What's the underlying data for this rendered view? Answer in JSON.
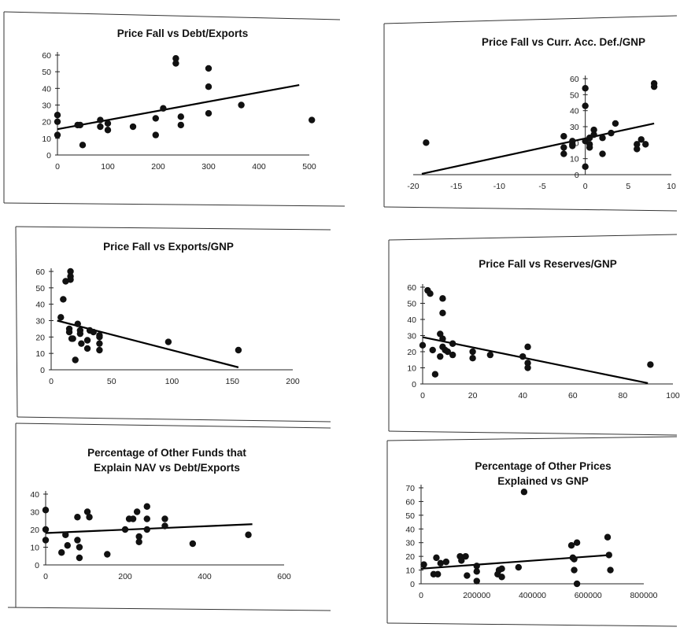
{
  "chart_data": [
    {
      "type": "scatter",
      "title": "Price Fall vs Debt/Exports",
      "xlim": [
        0,
        500
      ],
      "ylim": [
        0,
        60
      ],
      "xticks": [
        0,
        100,
        200,
        300,
        400,
        500
      ],
      "xtick_labels": [
        "0",
        "100",
        "200",
        "300",
        "400",
        "500"
      ],
      "yticks": [
        0,
        10,
        20,
        30,
        40,
        50,
        60
      ],
      "ytick_labels": [
        "0",
        "10",
        "20",
        "30",
        "40",
        "50",
        "60"
      ],
      "trendline": [
        [
          0,
          15.5
        ],
        [
          480,
          42
        ]
      ],
      "points": [
        [
          0,
          24
        ],
        [
          0,
          20
        ],
        [
          0,
          12
        ],
        [
          40,
          18
        ],
        [
          45,
          18
        ],
        [
          50,
          6
        ],
        [
          85,
          21
        ],
        [
          85,
          17
        ],
        [
          100,
          19
        ],
        [
          100,
          15
        ],
        [
          150,
          17
        ],
        [
          195,
          22
        ],
        [
          195,
          12
        ],
        [
          210,
          28
        ],
        [
          235,
          58
        ],
        [
          235,
          55
        ],
        [
          245,
          23
        ],
        [
          245,
          18
        ],
        [
          300,
          52
        ],
        [
          300,
          41
        ],
        [
          300,
          25
        ],
        [
          365,
          30
        ],
        [
          505,
          21
        ]
      ]
    },
    {
      "type": "scatter",
      "title": "Price Fall vs Curr. Acc. Def./GNP",
      "xlim": [
        -20,
        10
      ],
      "ylim": [
        0,
        60
      ],
      "xticks": [
        -20,
        -15,
        -10,
        -5,
        0,
        5,
        10
      ],
      "xtick_labels": [
        "-20",
        "-15",
        "-10",
        "-5",
        "0",
        "5",
        "10"
      ],
      "yticks": [
        0,
        10,
        20,
        30,
        40,
        50,
        60
      ],
      "ytick_labels": [
        "0",
        "10",
        "20",
        "30",
        "40",
        "50",
        "60"
      ],
      "trendline": [
        [
          -19,
          0.5
        ],
        [
          8,
          32
        ]
      ],
      "points": [
        [
          -18.5,
          20
        ],
        [
          -2.5,
          24
        ],
        [
          -2.5,
          17
        ],
        [
          -2.5,
          13
        ],
        [
          -1.5,
          21
        ],
        [
          -1.5,
          19
        ],
        [
          -1.5,
          18
        ],
        [
          0,
          54
        ],
        [
          0,
          43
        ],
        [
          0,
          21
        ],
        [
          0,
          5
        ],
        [
          0.5,
          23
        ],
        [
          0.5,
          19
        ],
        [
          0.5,
          17
        ],
        [
          1,
          28
        ],
        [
          1,
          25
        ],
        [
          2,
          23
        ],
        [
          2,
          13
        ],
        [
          3,
          26
        ],
        [
          3.5,
          32
        ],
        [
          6,
          19
        ],
        [
          6,
          16
        ],
        [
          6.5,
          22
        ],
        [
          7,
          19
        ],
        [
          8,
          57
        ],
        [
          8,
          55
        ]
      ]
    },
    {
      "type": "scatter",
      "title": "Price Fall vs Exports/GNP",
      "xlim": [
        0,
        200
      ],
      "ylim": [
        0,
        60
      ],
      "xticks": [
        0,
        50,
        100,
        150,
        200
      ],
      "xtick_labels": [
        "0",
        "50",
        "100",
        "150",
        "200"
      ],
      "yticks": [
        0,
        10,
        20,
        30,
        40,
        50,
        60
      ],
      "ytick_labels": [
        "0",
        "10",
        "20",
        "30",
        "40",
        "50",
        "60"
      ],
      "trendline": [
        [
          5,
          30
        ],
        [
          155,
          1.5
        ]
      ],
      "points": [
        [
          8,
          32
        ],
        [
          10,
          43
        ],
        [
          12,
          54
        ],
        [
          16,
          60
        ],
        [
          16,
          57
        ],
        [
          16,
          55
        ],
        [
          15,
          25
        ],
        [
          15,
          23
        ],
        [
          17,
          19
        ],
        [
          18,
          19
        ],
        [
          20,
          6
        ],
        [
          22,
          28
        ],
        [
          24,
          24
        ],
        [
          24,
          22
        ],
        [
          25,
          16
        ],
        [
          30,
          13
        ],
        [
          30,
          18
        ],
        [
          32,
          24
        ],
        [
          35,
          23
        ],
        [
          40,
          21
        ],
        [
          40,
          20
        ],
        [
          40,
          16
        ],
        [
          40,
          12
        ],
        [
          97,
          17
        ],
        [
          155,
          12
        ]
      ]
    },
    {
      "type": "scatter",
      "title": "Price Fall vs Reserves/GNP",
      "xlim": [
        0,
        100
      ],
      "ylim": [
        0,
        60
      ],
      "xticks": [
        0,
        20,
        40,
        60,
        80,
        100
      ],
      "xtick_labels": [
        "0",
        "20",
        "40",
        "60",
        "80",
        "100"
      ],
      "yticks": [
        0,
        10,
        20,
        30,
        40,
        50,
        60
      ],
      "ytick_labels": [
        "0",
        "10",
        "20",
        "30",
        "40",
        "50",
        "60"
      ],
      "trendline": [
        [
          0,
          29
        ],
        [
          90,
          0.5
        ]
      ],
      "points": [
        [
          0,
          24
        ],
        [
          2,
          58
        ],
        [
          3,
          56
        ],
        [
          4,
          21
        ],
        [
          5,
          6
        ],
        [
          7,
          31
        ],
        [
          7,
          17
        ],
        [
          8,
          53
        ],
        [
          8,
          44
        ],
        [
          8,
          28
        ],
        [
          8,
          23
        ],
        [
          9,
          21
        ],
        [
          10,
          20
        ],
        [
          12,
          25
        ],
        [
          12,
          18
        ],
        [
          20,
          20
        ],
        [
          20,
          16
        ],
        [
          27,
          18
        ],
        [
          40,
          17
        ],
        [
          42,
          13
        ],
        [
          42,
          23
        ],
        [
          42,
          10
        ],
        [
          91,
          12
        ]
      ]
    },
    {
      "type": "scatter",
      "title": "Percentage of Other Funds that Explain NAV vs Debt/Exports",
      "xlim": [
        0,
        600
      ],
      "ylim": [
        0,
        40
      ],
      "xticks": [
        0,
        200,
        400,
        600
      ],
      "xtick_labels": [
        "0",
        "200",
        "400",
        "600"
      ],
      "yticks": [
        0,
        10,
        20,
        30,
        40
      ],
      "ytick_labels": [
        "0",
        "10",
        "20",
        "30",
        "40"
      ],
      "trendline": [
        [
          0,
          18
        ],
        [
          520,
          23
        ]
      ],
      "points": [
        [
          0,
          31
        ],
        [
          0,
          20
        ],
        [
          0,
          14
        ],
        [
          40,
          7
        ],
        [
          50,
          17
        ],
        [
          55,
          11
        ],
        [
          80,
          27
        ],
        [
          80,
          14
        ],
        [
          85,
          10
        ],
        [
          85,
          4
        ],
        [
          105,
          30
        ],
        [
          110,
          27
        ],
        [
          155,
          6
        ],
        [
          200,
          20
        ],
        [
          210,
          26
        ],
        [
          220,
          26
        ],
        [
          230,
          30
        ],
        [
          235,
          16
        ],
        [
          235,
          13
        ],
        [
          255,
          33
        ],
        [
          255,
          26
        ],
        [
          255,
          20
        ],
        [
          300,
          26
        ],
        [
          300,
          22
        ],
        [
          370,
          12
        ],
        [
          510,
          17
        ]
      ]
    },
    {
      "type": "scatter",
      "title": "Percentage of Other Prices Explained vs GNP",
      "xlim": [
        0,
        800000
      ],
      "ylim": [
        0,
        70
      ],
      "xticks": [
        0,
        200000,
        400000,
        600000,
        800000
      ],
      "xtick_labels": [
        "0",
        "200000",
        "400000",
        "600000",
        "800000"
      ],
      "yticks": [
        0,
        10,
        20,
        30,
        40,
        50,
        60,
        70
      ],
      "ytick_labels": [
        "0",
        "10",
        "20",
        "30",
        "40",
        "50",
        "60",
        "70"
      ],
      "trendline": [
        [
          0,
          11
        ],
        [
          680000,
          21
        ]
      ],
      "points": [
        [
          10000,
          14
        ],
        [
          45000,
          7
        ],
        [
          55000,
          19
        ],
        [
          60000,
          7
        ],
        [
          70000,
          15
        ],
        [
          90000,
          16
        ],
        [
          140000,
          20
        ],
        [
          145000,
          17
        ],
        [
          160000,
          20
        ],
        [
          165000,
          6
        ],
        [
          200000,
          2
        ],
        [
          200000,
          13
        ],
        [
          200000,
          9
        ],
        [
          275000,
          7
        ],
        [
          280000,
          10
        ],
        [
          290000,
          5
        ],
        [
          290000,
          11
        ],
        [
          350000,
          12
        ],
        [
          370000,
          67
        ],
        [
          540000,
          28
        ],
        [
          545000,
          19
        ],
        [
          550000,
          18
        ],
        [
          550000,
          10
        ],
        [
          560000,
          0
        ],
        [
          560000,
          30
        ],
        [
          670000,
          34
        ],
        [
          675000,
          21
        ],
        [
          680000,
          10
        ]
      ]
    }
  ]
}
